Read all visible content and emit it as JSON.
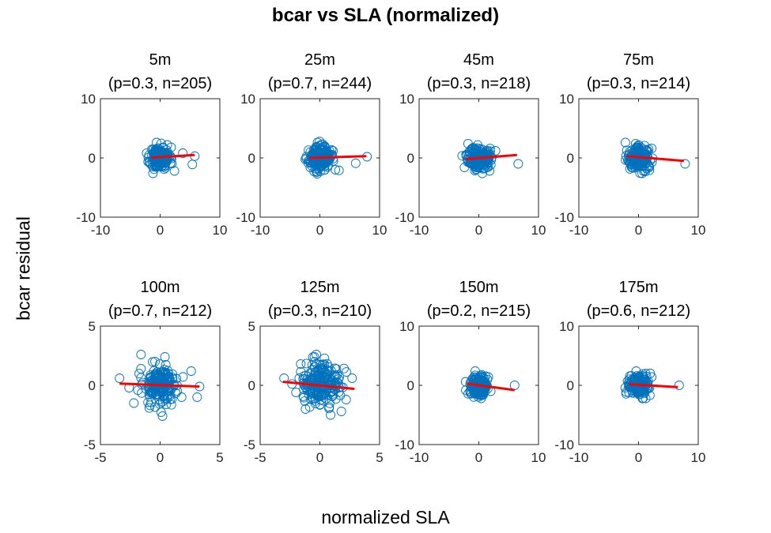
{
  "figure": {
    "title": "bcar vs SLA (normalized)",
    "xlabel": "normalized SLA",
    "ylabel": "bcar residual"
  },
  "colors": {
    "marker": "#0072BD",
    "fit": "#FF0000",
    "axis": "#262626"
  },
  "chart_data": [
    {
      "type": "scatter",
      "title_line1": "5m",
      "title_line2": "(p=0.3, n=205)",
      "xlim": [
        -10,
        10
      ],
      "ylim": [
        -10,
        10
      ],
      "xticks": [
        -10,
        0,
        10
      ],
      "yticks": [
        -10,
        0,
        10
      ],
      "fit": {
        "x": [
          -1.5,
          5.8
        ],
        "y": [
          0.05,
          0.5
        ]
      },
      "n": 205,
      "seed": 11,
      "sx": 0.8,
      "sy": 0.9,
      "outliers": [
        [
          5.8,
          0.3
        ],
        [
          5.4,
          -1.1
        ],
        [
          3.8,
          0.8
        ],
        [
          2.4,
          -2.2
        ],
        [
          -1.2,
          -2.6
        ],
        [
          -0.6,
          2.6
        ],
        [
          1.2,
          2.2
        ]
      ]
    },
    {
      "type": "scatter",
      "title_line1": "25m",
      "title_line2": "(p=0.7, n=244)",
      "xlim": [
        -10,
        10
      ],
      "ylim": [
        -10,
        10
      ],
      "xticks": [
        -10,
        0,
        10
      ],
      "yticks": [
        -10,
        0,
        10
      ],
      "fit": {
        "x": [
          -1.8,
          7.8
        ],
        "y": [
          0.0,
          0.3
        ]
      },
      "n": 244,
      "seed": 23,
      "sx": 0.9,
      "sy": 0.9,
      "outliers": [
        [
          7.9,
          0.2
        ],
        [
          6.0,
          -0.9
        ],
        [
          3.2,
          -2.1
        ],
        [
          2.6,
          -2.0
        ],
        [
          -1.6,
          -1.6
        ],
        [
          -0.4,
          2.6
        ],
        [
          2.2,
          1.2
        ]
      ]
    },
    {
      "type": "scatter",
      "title_line1": "45m",
      "title_line2": "(p=0.3, n=218)",
      "xlim": [
        -10,
        10
      ],
      "ylim": [
        -10,
        10
      ],
      "xticks": [
        -10,
        0,
        10
      ],
      "yticks": [
        -10,
        0,
        10
      ],
      "fit": {
        "x": [
          -2.2,
          6.4
        ],
        "y": [
          -0.2,
          0.5
        ]
      },
      "n": 218,
      "seed": 37,
      "sx": 0.9,
      "sy": 0.9,
      "outliers": [
        [
          6.6,
          -1.0
        ],
        [
          -2.4,
          -1.6
        ],
        [
          -1.8,
          2.4
        ],
        [
          2.8,
          1.2
        ],
        [
          1.8,
          -2.2
        ],
        [
          0.6,
          -2.6
        ]
      ]
    },
    {
      "type": "scatter",
      "title_line1": "75m",
      "title_line2": "(p=0.3, n=214)",
      "xlim": [
        -10,
        10
      ],
      "ylim": [
        -10,
        10
      ],
      "xticks": [
        -10,
        0,
        10
      ],
      "yticks": [
        -10,
        0,
        10
      ],
      "fit": {
        "x": [
          -2.0,
          7.6
        ],
        "y": [
          0.3,
          -0.5
        ]
      },
      "n": 214,
      "seed": 41,
      "sx": 0.9,
      "sy": 0.9,
      "outliers": [
        [
          7.8,
          -1.0
        ],
        [
          -2.2,
          2.6
        ],
        [
          -1.8,
          -0.4
        ],
        [
          2.2,
          1.6
        ],
        [
          0.6,
          -2.6
        ],
        [
          1.8,
          -1.6
        ]
      ]
    },
    {
      "type": "scatter",
      "title_line1": "100m",
      "title_line2": "(p=0.7, n=212)",
      "xlim": [
        -5,
        5
      ],
      "ylim": [
        -5,
        5
      ],
      "xticks": [
        -5,
        0,
        5
      ],
      "yticks": [
        -5,
        0,
        5
      ],
      "fit": {
        "x": [
          -3.4,
          3.3
        ],
        "y": [
          0.15,
          -0.1
        ]
      },
      "n": 212,
      "seed": 53,
      "sx": 0.7,
      "sy": 0.8,
      "outliers": [
        [
          -3.4,
          0.6
        ],
        [
          -1.6,
          2.6
        ],
        [
          3.3,
          -0.1
        ],
        [
          3.1,
          -1.0
        ],
        [
          2.6,
          1.2
        ],
        [
          -2.2,
          -1.5
        ],
        [
          -2.6,
          -0.2
        ],
        [
          0.2,
          -2.6
        ],
        [
          0.4,
          2.4
        ],
        [
          -1.6,
          1.4
        ],
        [
          1.8,
          -1.0
        ]
      ]
    },
    {
      "type": "scatter",
      "title_line1": "125m",
      "title_line2": "(p=0.3, n=210)",
      "xlim": [
        -5,
        5
      ],
      "ylim": [
        -5,
        5
      ],
      "xticks": [
        -5,
        0,
        5
      ],
      "yticks": [
        -5,
        0,
        5
      ],
      "fit": {
        "x": [
          -3.1,
          2.9
        ],
        "y": [
          0.3,
          -0.3
        ]
      },
      "n": 210,
      "seed": 67,
      "sx": 0.8,
      "sy": 0.9,
      "outliers": [
        [
          -3.0,
          0.6
        ],
        [
          -0.3,
          2.6
        ],
        [
          2.7,
          0.6
        ],
        [
          2.2,
          -1.2
        ],
        [
          1.8,
          -2.2
        ],
        [
          -1.6,
          1.8
        ],
        [
          -1.2,
          -2.0
        ],
        [
          0.9,
          -2.5
        ],
        [
          -2.0,
          -0.6
        ]
      ]
    },
    {
      "type": "scatter",
      "title_line1": "150m",
      "title_line2": "(p=0.2, n=215)",
      "xlim": [
        -10,
        10
      ],
      "ylim": [
        -10,
        10
      ],
      "xticks": [
        -10,
        0,
        10
      ],
      "yticks": [
        -10,
        0,
        10
      ],
      "fit": {
        "x": [
          -2.0,
          6.0
        ],
        "y": [
          0.3,
          -0.8
        ]
      },
      "n": 215,
      "seed": 79,
      "sx": 0.7,
      "sy": 0.8,
      "outliers": [
        [
          6.0,
          0.0
        ],
        [
          -2.2,
          0.6
        ],
        [
          -0.6,
          2.4
        ],
        [
          0.4,
          -2.2
        ],
        [
          1.6,
          1.4
        ],
        [
          2.0,
          -1.0
        ]
      ]
    },
    {
      "type": "scatter",
      "title_line1": "175m",
      "title_line2": "(p=0.6, n=212)",
      "xlim": [
        -10,
        10
      ],
      "ylim": [
        -10,
        10
      ],
      "xticks": [
        -10,
        0,
        10
      ],
      "yticks": [
        -10,
        0,
        10
      ],
      "fit": {
        "x": [
          -1.6,
          6.6
        ],
        "y": [
          0.2,
          -0.3
        ]
      },
      "n": 212,
      "seed": 83,
      "sx": 0.8,
      "sy": 0.8,
      "outliers": [
        [
          6.8,
          0.0
        ],
        [
          -1.6,
          -1.2
        ],
        [
          -0.4,
          2.4
        ],
        [
          1.2,
          -2.2
        ],
        [
          2.2,
          1.4
        ],
        [
          -1.2,
          1.6
        ]
      ]
    }
  ]
}
